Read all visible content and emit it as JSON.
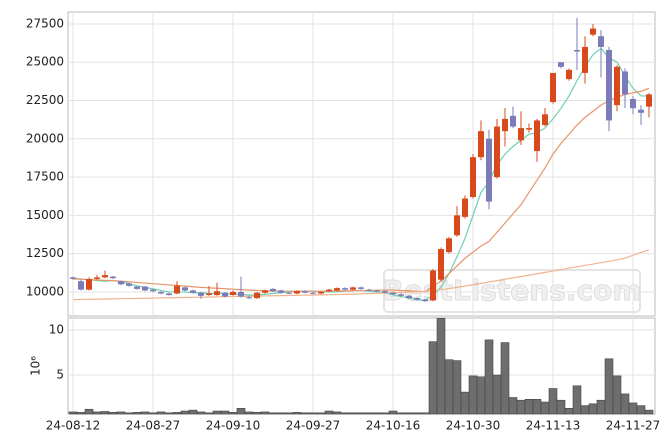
{
  "chart_data": [
    {
      "type": "candlestick",
      "open": [
        10950,
        10700,
        10150,
        10850,
        10950,
        11000,
        10700,
        10550,
        10350,
        10350,
        10150,
        10000,
        9900,
        9900,
        10300,
        10100,
        9950,
        9800,
        9800,
        9950,
        9800,
        10000,
        9650,
        9600,
        9950,
        10200,
        10100,
        9950,
        9900,
        10050,
        9950,
        9900,
        10050,
        10100,
        10250,
        10150,
        10300,
        10150,
        10100,
        10050,
        9950,
        9850,
        9750,
        9600,
        9500,
        9450,
        10800,
        12600,
        13700,
        14900,
        16200,
        18800,
        20000,
        17500,
        20500,
        21500,
        19900,
        20600,
        19200,
        20900,
        22400,
        25000,
        23900,
        25800,
        24300,
        26800,
        26700,
        25800,
        22200,
        24400,
        22600,
        21900,
        22100
      ],
      "high": [
        11000,
        10800,
        10950,
        11100,
        11400,
        11050,
        10750,
        10600,
        10400,
        10400,
        10200,
        10050,
        9950,
        10700,
        10350,
        10150,
        10000,
        10400,
        10600,
        10000,
        10100,
        11000,
        9750,
        10000,
        10150,
        10250,
        10150,
        10000,
        10100,
        10100,
        10000,
        10050,
        10200,
        10300,
        10300,
        10350,
        10350,
        10200,
        10150,
        10100,
        10000,
        9900,
        9800,
        9650,
        9550,
        11500,
        12900,
        13600,
        15600,
        16300,
        19000,
        21200,
        20600,
        21300,
        22000,
        22100,
        21800,
        21000,
        21300,
        22000,
        24300,
        25000,
        24600,
        27900,
        26700,
        27500,
        27100,
        26000,
        24800,
        24600,
        22800,
        22200,
        23000
      ],
      "low": [
        10800,
        10100,
        10100,
        10800,
        10900,
        10850,
        10450,
        10350,
        10150,
        10050,
        10000,
        9850,
        9750,
        9850,
        10050,
        9900,
        9550,
        9750,
        9750,
        9650,
        9750,
        9650,
        9550,
        9550,
        9900,
        10000,
        9900,
        9850,
        9850,
        9900,
        9850,
        9850,
        10000,
        10050,
        10100,
        10100,
        10150,
        10050,
        10000,
        9900,
        9800,
        9700,
        9550,
        9450,
        9350,
        9400,
        10700,
        12500,
        13600,
        14800,
        16100,
        18600,
        15400,
        17400,
        19500,
        20700,
        19600,
        20400,
        18500,
        20800,
        22300,
        24600,
        23800,
        24500,
        23600,
        26700,
        24000,
        20500,
        21800,
        22000,
        21600,
        20900,
        21400
      ],
      "close": [
        10850,
        10150,
        10850,
        10950,
        11100,
        10900,
        10500,
        10400,
        10200,
        10100,
        10050,
        9900,
        9800,
        10400,
        10100,
        9950,
        9750,
        9900,
        10050,
        9700,
        10000,
        9700,
        9600,
        9950,
        10100,
        10050,
        9950,
        9900,
        10050,
        9950,
        9900,
        10000,
        10150,
        10250,
        10150,
        10300,
        10200,
        10100,
        10050,
        9950,
        9850,
        9750,
        9600,
        9500,
        9400,
        11400,
        12800,
        13500,
        15000,
        16100,
        18800,
        20500,
        15900,
        20800,
        21300,
        20800,
        20700,
        20700,
        21200,
        21600,
        24300,
        24700,
        24500,
        25700,
        26000,
        27200,
        26000,
        21200,
        24700,
        22900,
        22000,
        21700,
        22900
      ],
      "up_color": "#d84a1b",
      "down_color": "#7b7bb8",
      "lines": [
        {
          "color": "#6fcfb4",
          "values": [
            10900,
            10850,
            10800,
            10750,
            10700,
            10750,
            10650,
            10550,
            10400,
            10300,
            10200,
            10100,
            10000,
            10000,
            10000,
            9950,
            9950,
            9900,
            9900,
            9900,
            9850,
            9850,
            9800,
            9800,
            9850,
            9900,
            9950,
            10000,
            10050,
            10050,
            10050,
            10000,
            10000,
            10000,
            10050,
            10100,
            10100,
            10050,
            10000,
            9950,
            9800,
            9700,
            9600,
            9500,
            9450,
            9800,
            10300,
            11200,
            12300,
            13500,
            15000,
            16500,
            17200,
            18300,
            19000,
            19500,
            19900,
            20300,
            20400,
            20700,
            21300,
            22000,
            22800,
            23800,
            24700,
            25500,
            25900,
            25300,
            25000,
            24100,
            23300,
            22800,
            22800
          ]
        },
        {
          "color": "#e8946a",
          "values": [
            10850,
            10830,
            10800,
            10780,
            10760,
            10740,
            10700,
            10660,
            10620,
            10580,
            10540,
            10500,
            10460,
            10420,
            10380,
            10340,
            10300,
            10270,
            10240,
            10210,
            10180,
            10150,
            10120,
            10100,
            10080,
            10060,
            10050,
            10050,
            10050,
            10050,
            10050,
            10050,
            10050,
            10060,
            10070,
            10080,
            10090,
            10100,
            10110,
            10120,
            10120,
            10100,
            10080,
            10050,
            10000,
            10400,
            10700,
            11200,
            11700,
            12200,
            12600,
            13000,
            13300,
            13900,
            14500,
            15100,
            15700,
            16500,
            17300,
            18100,
            19000,
            19700,
            20300,
            20900,
            21400,
            21800,
            22200,
            22500,
            22700,
            22900,
            23000,
            23100,
            23300
          ]
        },
        {
          "color": "#f0b48e",
          "values": [
            9500,
            9510,
            9520,
            9530,
            9540,
            9550,
            9560,
            9570,
            9580,
            9590,
            9600,
            9610,
            9620,
            9630,
            9640,
            9650,
            9660,
            9670,
            9680,
            9690,
            9700,
            9710,
            9720,
            9730,
            9740,
            9750,
            9760,
            9770,
            9780,
            9790,
            9800,
            9810,
            9820,
            9830,
            9840,
            9850,
            9870,
            9890,
            9910,
            9930,
            9950,
            9970,
            9990,
            10010,
            10030,
            10080,
            10150,
            10220,
            10300,
            10380,
            10470,
            10560,
            10650,
            10740,
            10830,
            10920,
            11010,
            11100,
            11190,
            11280,
            11370,
            11460,
            11550,
            11640,
            11730,
            11820,
            11910,
            12000,
            12100,
            12200,
            12400,
            12580,
            12750
          ]
        }
      ],
      "ylim": [
        8430,
        28280
      ],
      "yticks": [
        10000,
        12500,
        15000,
        17500,
        20000,
        22500,
        25000,
        27500
      ],
      "grid": true,
      "watermark": "BestListens.com"
    },
    {
      "type": "bar",
      "categories": [
        "24-08-12",
        null,
        null,
        null,
        null,
        null,
        null,
        null,
        null,
        null,
        "24-08-27",
        null,
        null,
        null,
        null,
        null,
        null,
        null,
        null,
        null,
        "24-09-10",
        null,
        null,
        null,
        null,
        null,
        null,
        null,
        null,
        null,
        "24-09-27",
        null,
        null,
        null,
        null,
        null,
        null,
        null,
        null,
        null,
        "24-10-16",
        null,
        null,
        null,
        null,
        null,
        null,
        null,
        null,
        null,
        "24-10-30",
        null,
        null,
        null,
        null,
        null,
        null,
        null,
        null,
        null,
        "24-11-13",
        null,
        null,
        null,
        null,
        null,
        null,
        null,
        null,
        null,
        "24-11-27",
        null,
        null
      ],
      "values": [
        0.9,
        0.85,
        1.2,
        0.9,
        0.95,
        0.85,
        0.9,
        0.8,
        0.85,
        0.9,
        0.8,
        0.9,
        0.8,
        0.85,
        1.0,
        1.1,
        0.9,
        0.8,
        1.0,
        1.0,
        0.85,
        1.3,
        0.9,
        0.85,
        0.9,
        0.8,
        0.8,
        0.8,
        0.85,
        0.8,
        0.8,
        0.8,
        1.0,
        0.9,
        0.8,
        0.8,
        0.8,
        0.8,
        0.8,
        0.8,
        1.0,
        0.8,
        0.8,
        0.8,
        0.8,
        8.7,
        11.3,
        6.7,
        6.6,
        3.1,
        4.9,
        4.8,
        8.9,
        5.0,
        8.6,
        2.5,
        2.2,
        2.3,
        2.3,
        2.0,
        3.5,
        2.2,
        1.3,
        3.8,
        1.6,
        1.8,
        2.2,
        6.8,
        4.9,
        2.9,
        1.9,
        1.6,
        1.1
      ],
      "color": "#6e6e6e",
      "ylim": [
        0.67,
        11.33
      ],
      "yticks": [
        5,
        10
      ],
      "ylabel": "10⁶",
      "grid": true
    }
  ]
}
